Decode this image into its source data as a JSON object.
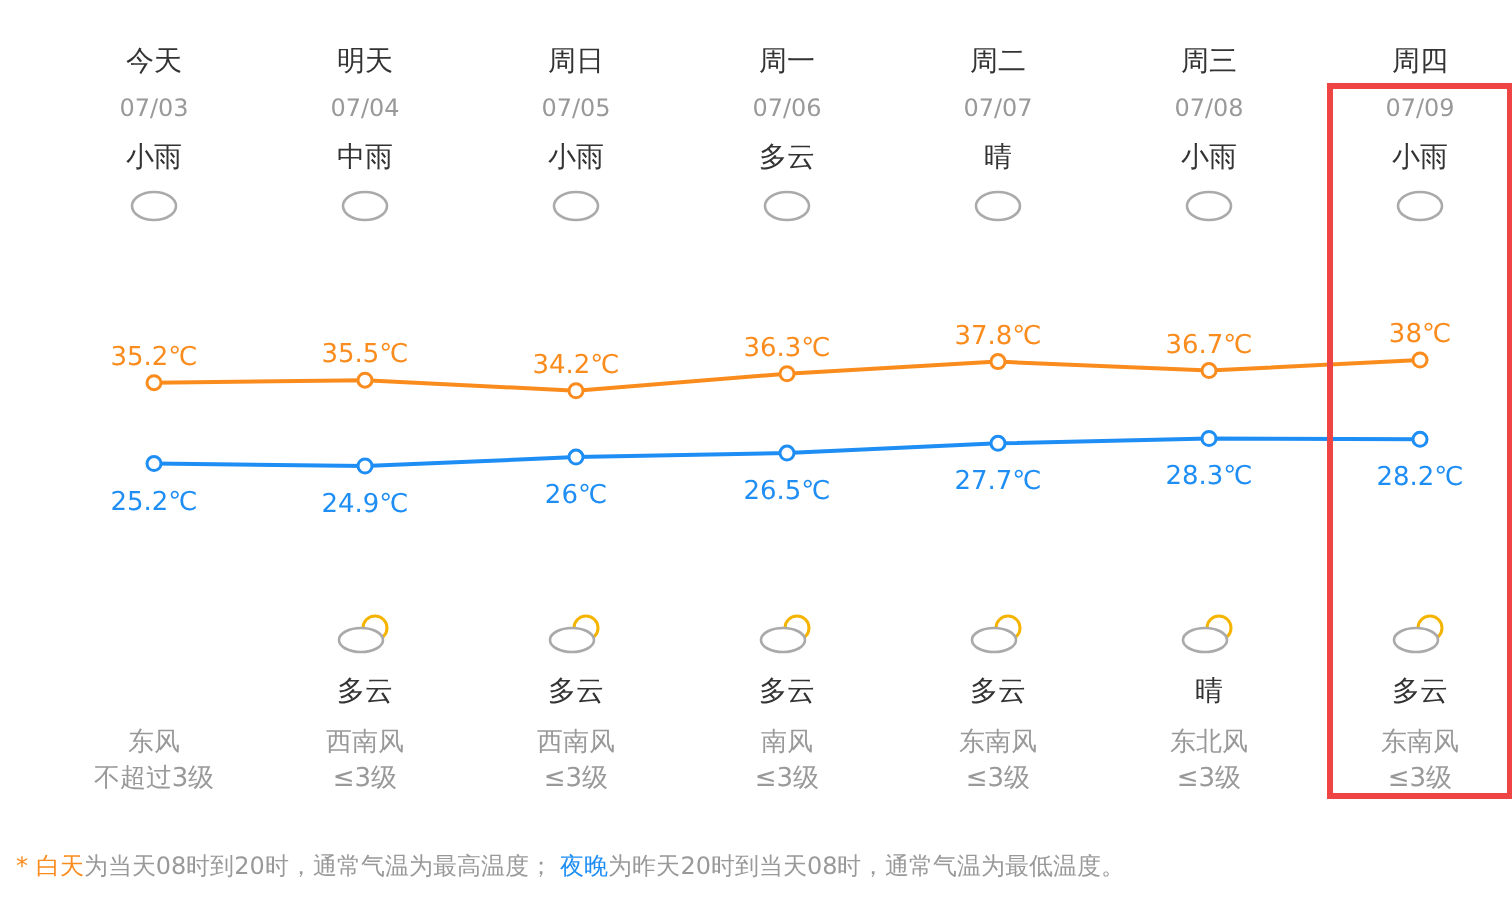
{
  "chart_data": {
    "type": "line",
    "categories": [
      "今天",
      "明天",
      "周日",
      "周一",
      "周二",
      "周三",
      "周四"
    ],
    "series": [
      {
        "name": "白天",
        "color": "#fa8c1e",
        "values": [
          35.2,
          35.5,
          34.2,
          36.3,
          37.8,
          36.7,
          38
        ],
        "value_labels": [
          "35.2℃",
          "35.5℃",
          "34.2℃",
          "36.3℃",
          "37.8℃",
          "36.7℃",
          "38℃"
        ]
      },
      {
        "name": "夜晚",
        "color": "#1e8ef5",
        "values": [
          25.2,
          24.9,
          26,
          26.5,
          27.7,
          28.3,
          28.2
        ],
        "value_labels": [
          "25.2℃",
          "24.9℃",
          "26℃",
          "26.5℃",
          "27.7℃",
          "28.3℃",
          "28.2℃"
        ]
      }
    ],
    "marker": "circle",
    "line_style": "solid",
    "annotations": [
      "07/03",
      "07/04",
      "07/05",
      "07/06",
      "07/07",
      "07/08",
      "07/09",
      "小雨",
      "中雨",
      "小雨",
      "多云",
      "晴",
      "小雨",
      "小雨",
      "多云",
      "多云",
      "多云",
      "多云",
      "晴",
      "多云",
      "东风",
      "西南风",
      "西南风",
      "南风",
      "东南风",
      "东北风",
      "东南风",
      "不超过3级",
      "≤3级",
      "≤3级",
      "≤3级",
      "≤3级",
      "≤3级",
      "≤3级",
      "*",
      "为当天08时到20时，通常气温为最高温度；",
      "为昨天20时到当天08时，通常气温为最低温度。"
    ]
  }
}
